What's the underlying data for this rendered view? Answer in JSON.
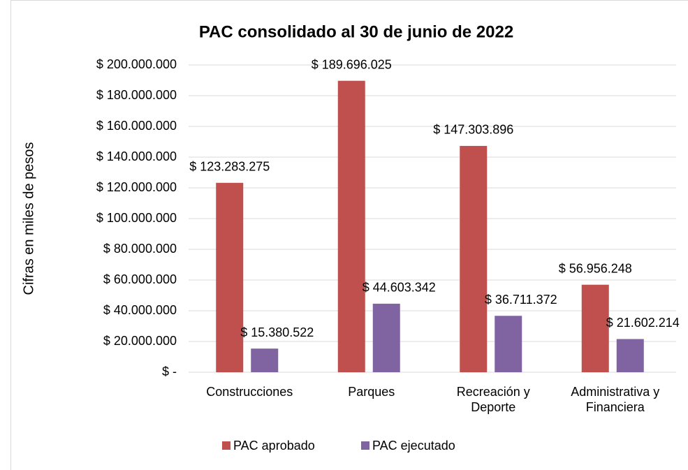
{
  "chart_data": {
    "type": "bar",
    "title": "PAC consolidado  al 30 de junio de 2022",
    "y_label": "Cifras en miles de pesos",
    "categories": [
      "Construcciones",
      "Parques",
      "Recreación y Deporte",
      "Administrativa y Financiera"
    ],
    "series": [
      {
        "name": "PAC aprobado",
        "color": "#c0504d",
        "values": [
          123283275,
          189696025,
          147303896,
          56956248
        ],
        "value_labels": [
          "$ 123.283.275",
          "$ 189.696.025",
          "$ 147.303.896",
          "$ 56.956.248"
        ]
      },
      {
        "name": "PAC ejecutado",
        "color": "#8064a2",
        "values": [
          15380522,
          44603342,
          36711372,
          21602214
        ],
        "value_labels": [
          "$ 15.380.522",
          "$ 44.603.342",
          "$ 36.711.372",
          "$ 21.602.214"
        ]
      }
    ],
    "ylim": [
      0,
      200000000
    ],
    "yticks": [
      {
        "value": 0,
        "label": "$ -"
      },
      {
        "value": 20000000,
        "label": "$ 20.000.000"
      },
      {
        "value": 40000000,
        "label": "$ 40.000.000"
      },
      {
        "value": 60000000,
        "label": "$ 60.000.000"
      },
      {
        "value": 80000000,
        "label": "$ 80.000.000"
      },
      {
        "value": 100000000,
        "label": "$ 100.000.000"
      },
      {
        "value": 120000000,
        "label": "$ 120.000.000"
      },
      {
        "value": 140000000,
        "label": "$ 140.000.000"
      },
      {
        "value": 160000000,
        "label": "$ 160.000.000"
      },
      {
        "value": 180000000,
        "label": "$ 180.000.000"
      },
      {
        "value": 200000000,
        "label": "$ 200.000.000"
      }
    ],
    "grid": true,
    "legend": "bottom"
  }
}
